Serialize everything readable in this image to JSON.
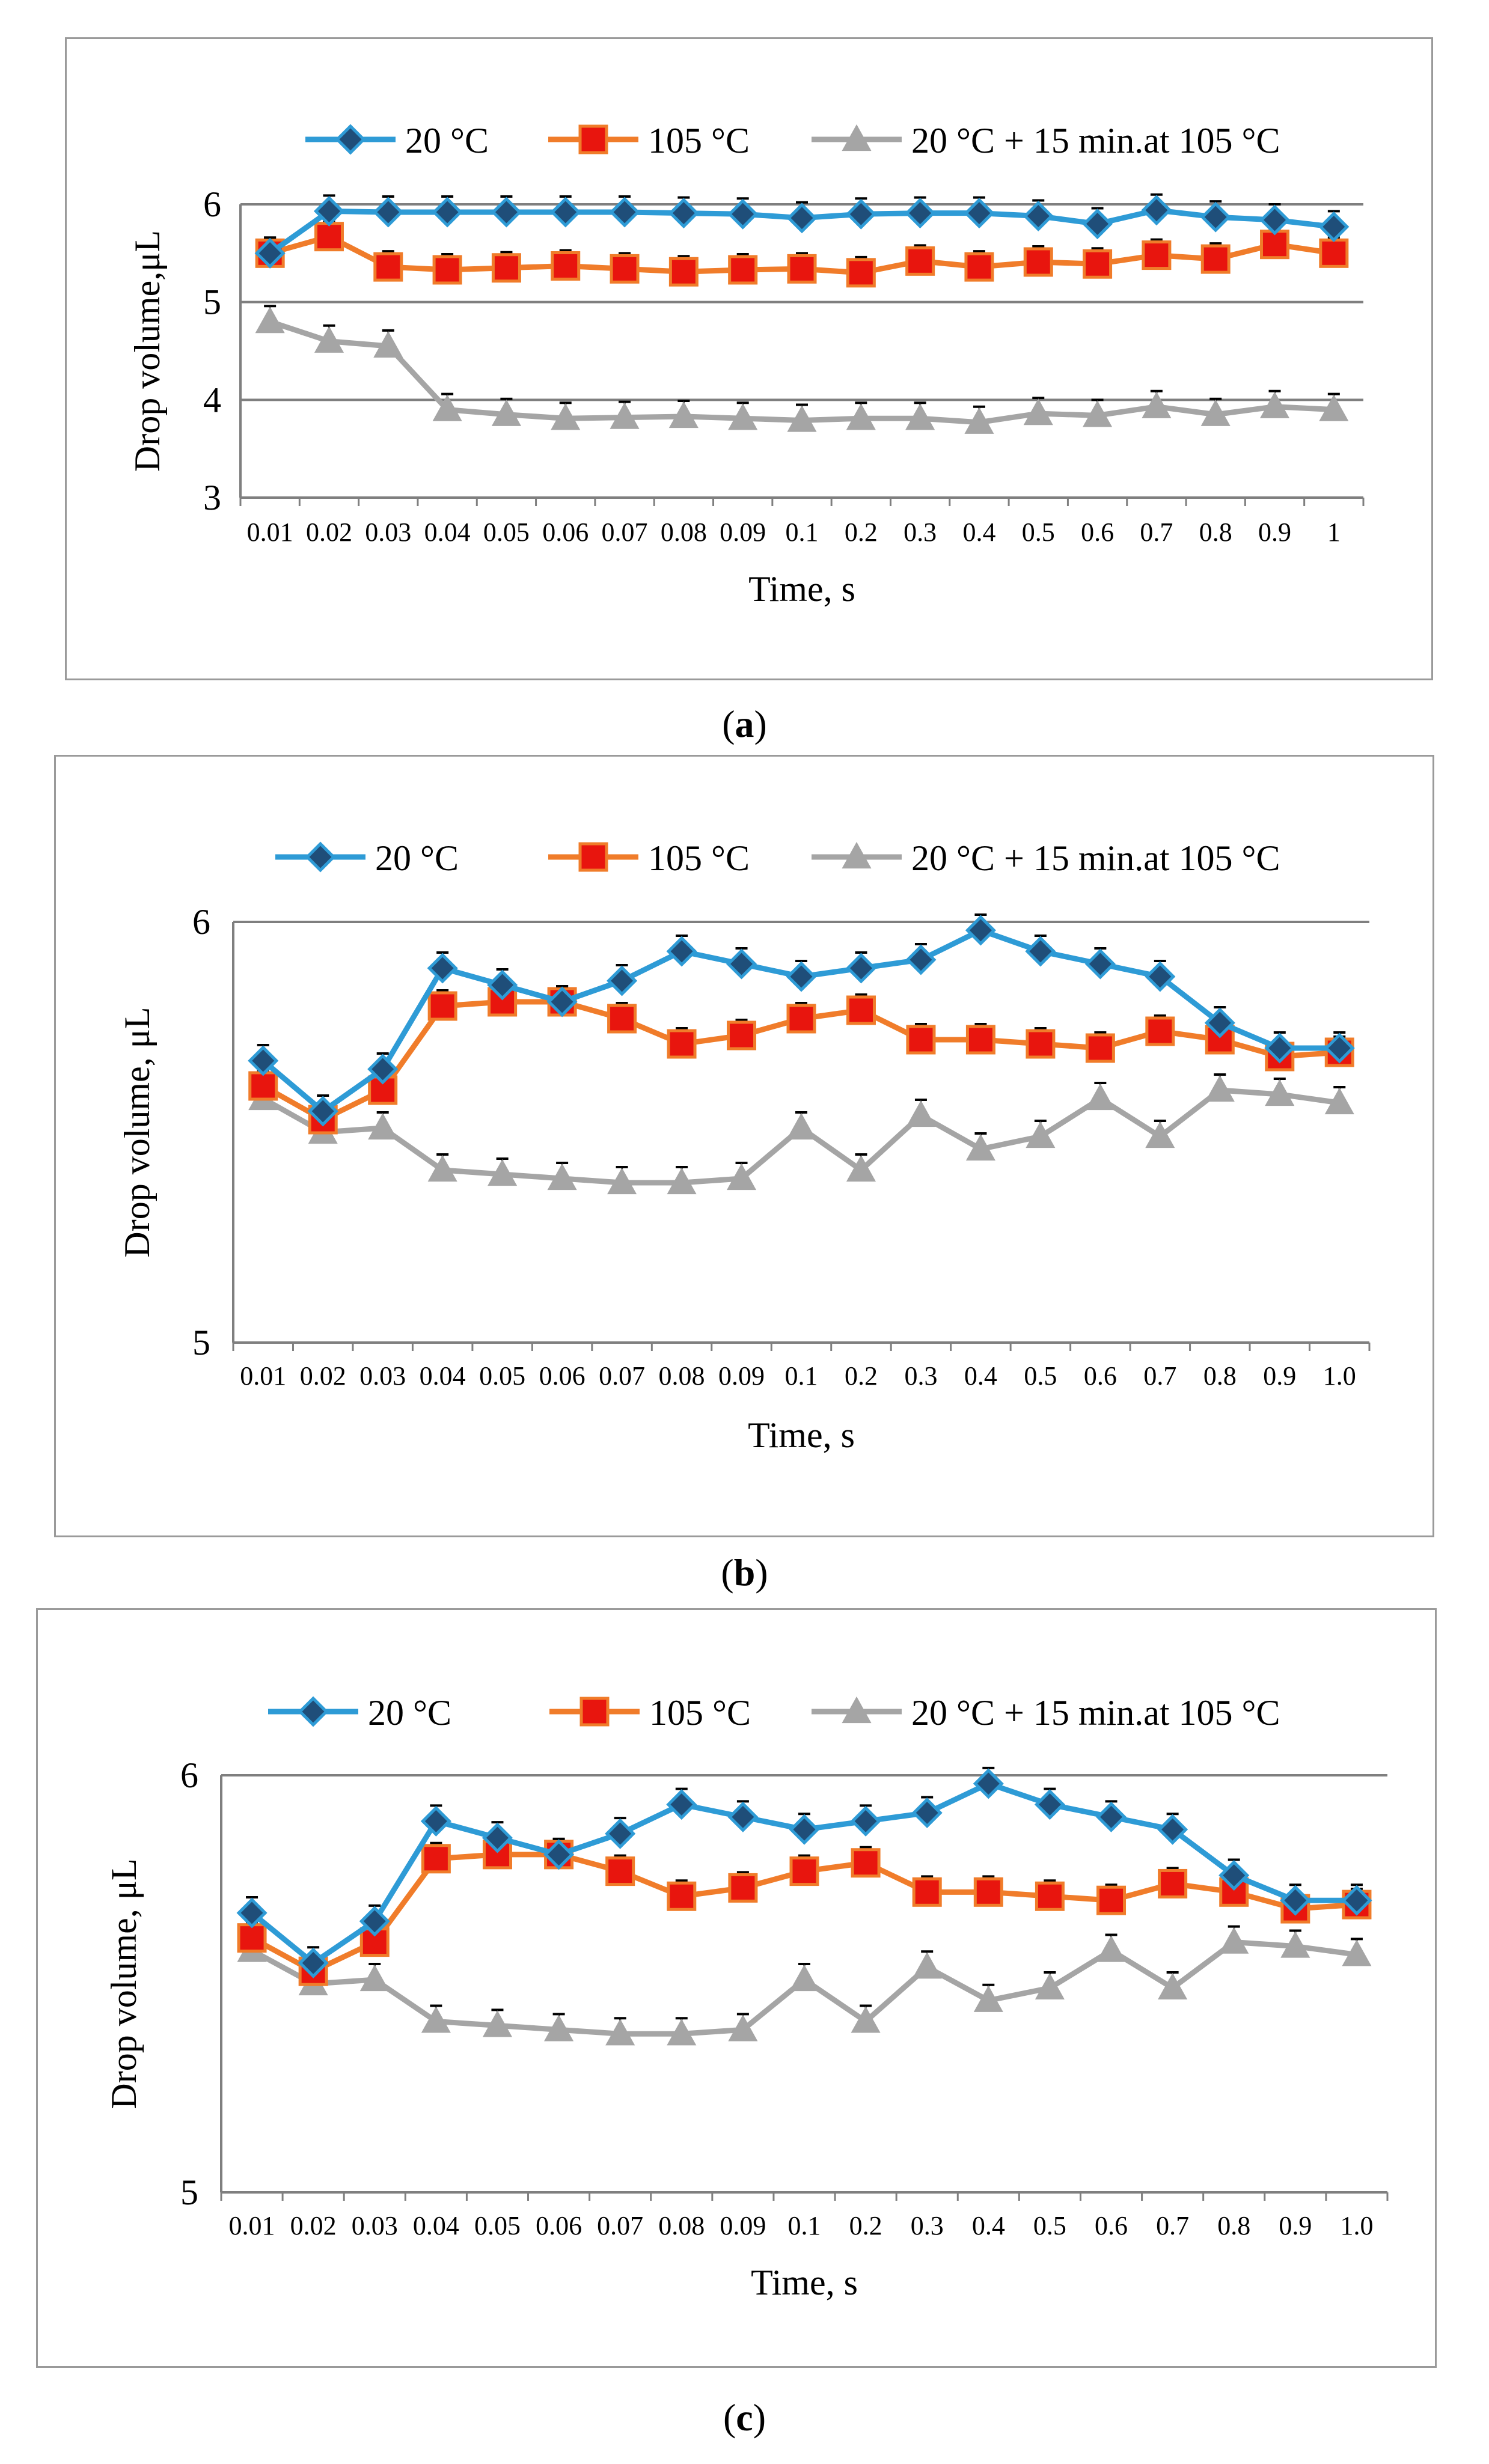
{
  "colors": {
    "blue": "#2E9BD6",
    "blue_marker": "#1F4E79",
    "orange": "#F07C2A",
    "red_marker": "#E8150E",
    "gray": "#A5A5A5",
    "grid": "#7F7F7F",
    "axis": "#7F7F7F"
  },
  "legend": {
    "s1": "20 °C",
    "s2": "105 °C",
    "s3": "20 °C + 15 min.at 105 °C"
  },
  "panels": [
    {
      "caption_open": "(",
      "caption_letter": "a",
      "caption_close": ")",
      "chart_data": {
        "type": "line",
        "title": "",
        "xlabel": "Time, s",
        "ylabel": "Drop volume,μL",
        "categories": [
          "0.01",
          "0.02",
          "0.03",
          "0.04",
          "0.05",
          "0.06",
          "0.07",
          "0.08",
          "0.09",
          "0.1",
          "0.2",
          "0.3",
          "0.4",
          "0.5",
          "0.6",
          "0.7",
          "0.8",
          "0.9",
          "1"
        ],
        "ylim": [
          3,
          6
        ],
        "yticks": [
          "3",
          "4",
          "5",
          "6"
        ],
        "grid": true,
        "legend_position": "top",
        "series": [
          {
            "name": "20 °C",
            "values": [
              5.5,
              5.93,
              5.92,
              5.92,
              5.92,
              5.92,
              5.92,
              5.91,
              5.9,
              5.86,
              5.9,
              5.91,
              5.91,
              5.88,
              5.8,
              5.94,
              5.87,
              5.84,
              5.77
            ]
          },
          {
            "name": "105 °C",
            "values": [
              5.5,
              5.67,
              5.36,
              5.33,
              5.35,
              5.37,
              5.34,
              5.31,
              5.33,
              5.34,
              5.3,
              5.42,
              5.36,
              5.41,
              5.39,
              5.48,
              5.44,
              5.59,
              5.5
            ]
          },
          {
            "name": "20 °C + 15 min.at 105 °C",
            "values": [
              4.8,
              4.6,
              4.55,
              3.9,
              3.85,
              3.81,
              3.82,
              3.83,
              3.81,
              3.79,
              3.81,
              3.81,
              3.77,
              3.86,
              3.84,
              3.93,
              3.85,
              3.93,
              3.9
            ]
          }
        ]
      }
    },
    {
      "caption_open": "(",
      "caption_letter": "b",
      "caption_close": ")",
      "chart_data": {
        "type": "line",
        "title": "",
        "xlabel": "Time, s",
        "ylabel": "Drop volume, μL",
        "categories": [
          "0.01",
          "0.02",
          "0.03",
          "0.04",
          "0.05",
          "0.06",
          "0.07",
          "0.08",
          "0.09",
          "0.1",
          "0.2",
          "0.3",
          "0.4",
          "0.5",
          "0.6",
          "0.7",
          "0.8",
          "0.9",
          "1.0"
        ],
        "ylim": [
          5,
          6
        ],
        "yticks": [
          "5",
          "6"
        ],
        "grid": true,
        "legend_position": "top",
        "series": [
          {
            "name": "20 °C",
            "values": [
              5.67,
              5.55,
              5.65,
              5.89,
              5.85,
              5.81,
              5.86,
              5.93,
              5.9,
              5.87,
              5.89,
              5.91,
              5.98,
              5.93,
              5.9,
              5.87,
              5.76,
              5.7,
              5.7
            ]
          },
          {
            "name": "105 °C",
            "values": [
              5.61,
              5.53,
              5.6,
              5.8,
              5.81,
              5.81,
              5.77,
              5.71,
              5.73,
              5.77,
              5.79,
              5.72,
              5.72,
              5.71,
              5.7,
              5.74,
              5.72,
              5.68,
              5.69
            ]
          },
          {
            "name": "20 °C + 15 min.at 105 °C",
            "values": [
              5.58,
              5.5,
              5.51,
              5.41,
              5.4,
              5.39,
              5.38,
              5.38,
              5.39,
              5.51,
              5.41,
              5.54,
              5.46,
              5.49,
              5.58,
              5.49,
              5.6,
              5.59,
              5.57
            ]
          }
        ]
      }
    },
    {
      "caption_open": "(",
      "caption_letter": "c",
      "caption_close": ")",
      "chart_data": {
        "type": "line",
        "title": "",
        "xlabel": "Time, s",
        "ylabel": "Drop volume, μL",
        "categories": [
          "0.01",
          "0.02",
          "0.03",
          "0.04",
          "0.05",
          "0.06",
          "0.07",
          "0.08",
          "0.09",
          "0.1",
          "0.2",
          "0.3",
          "0.4",
          "0.5",
          "0.6",
          "0.7",
          "0.8",
          "0.9",
          "1.0"
        ],
        "ylim": [
          5,
          6
        ],
        "yticks": [
          "5",
          "6"
        ],
        "grid": true,
        "legend_position": "top",
        "series": [
          {
            "name": "20 °C",
            "values": [
              5.67,
              5.55,
              5.65,
              5.89,
              5.85,
              5.81,
              5.86,
              5.93,
              5.9,
              5.87,
              5.89,
              5.91,
              5.98,
              5.93,
              5.9,
              5.87,
              5.76,
              5.7,
              5.7
            ]
          },
          {
            "name": "105 °C",
            "values": [
              5.61,
              5.53,
              5.6,
              5.8,
              5.81,
              5.81,
              5.77,
              5.71,
              5.73,
              5.77,
              5.79,
              5.72,
              5.72,
              5.71,
              5.7,
              5.74,
              5.72,
              5.68,
              5.69
            ]
          },
          {
            "name": "20 °C + 15 min.at 105 °C",
            "values": [
              5.58,
              5.5,
              5.51,
              5.41,
              5.4,
              5.39,
              5.38,
              5.38,
              5.39,
              5.51,
              5.41,
              5.54,
              5.46,
              5.49,
              5.58,
              5.49,
              5.6,
              5.59,
              5.57
            ]
          }
        ]
      }
    }
  ]
}
